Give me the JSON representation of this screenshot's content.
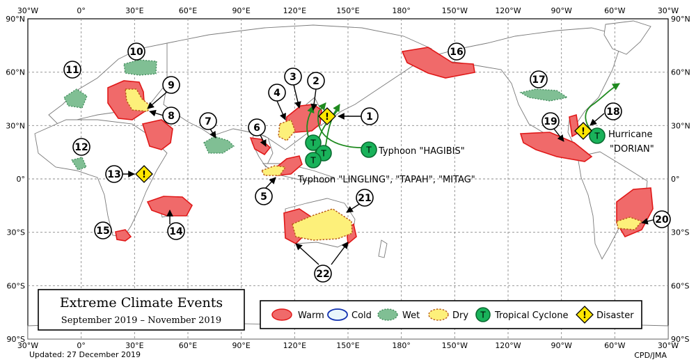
{
  "map": {
    "lon_labels": [
      "30°W",
      "0°",
      "30°E",
      "60°E",
      "90°E",
      "120°E",
      "150°E",
      "180°",
      "150°W",
      "120°W",
      "90°W",
      "60°W",
      "30°W"
    ],
    "lat_labels": [
      "90°N",
      "60°N",
      "30°N",
      "0°",
      "30°S",
      "60°S",
      "90°S"
    ],
    "colors": {
      "land_fill": "#ffffff",
      "land_stroke": "#7a7a7a",
      "grid": "#8a8a8a",
      "warm_fill": "#f06a6a",
      "warm_stroke": "#e01818",
      "cold_stroke": "#1030b0",
      "cold_fill": "#eaf6fb",
      "wet_fill": "#80bf94",
      "wet_stroke": "#3f8a5a",
      "dry_fill": "#fdf07a",
      "dry_stroke": "#b85a1a",
      "tc_fill": "#19b25a",
      "tc_stroke": "#0a6a30",
      "track": "#1f8a1f",
      "disaster_fill": "#ffe600"
    }
  },
  "title": {
    "main": "Extreme Climate Events",
    "period": "September 2019 – November 2019"
  },
  "legend": {
    "warm": "Warm",
    "cold": "Cold",
    "wet": "Wet",
    "dry": "Dry",
    "tropical_cyclone": "Tropical Cyclone",
    "tc_symbol": "T",
    "disaster": "Disaster",
    "disaster_symbol": "!"
  },
  "labels": {
    "typhoon_hagibis": "Typhoon \"HAGIBIS\"",
    "typhoon_group": "Typhoon \"LINGLING\", \"TAPAH\", \"MITAG\"",
    "hurricane": "Hurricane",
    "hurricane_name": "\"DORIAN\""
  },
  "event_numbers": [
    "1",
    "2",
    "3",
    "4",
    "5",
    "6",
    "7",
    "8",
    "9",
    "10",
    "11",
    "12",
    "13",
    "14",
    "15",
    "16",
    "17",
    "18",
    "19",
    "20",
    "21",
    "22"
  ],
  "footer": {
    "updated": "Updated: 27 December 2019",
    "credit": "CPD/JMA"
  }
}
